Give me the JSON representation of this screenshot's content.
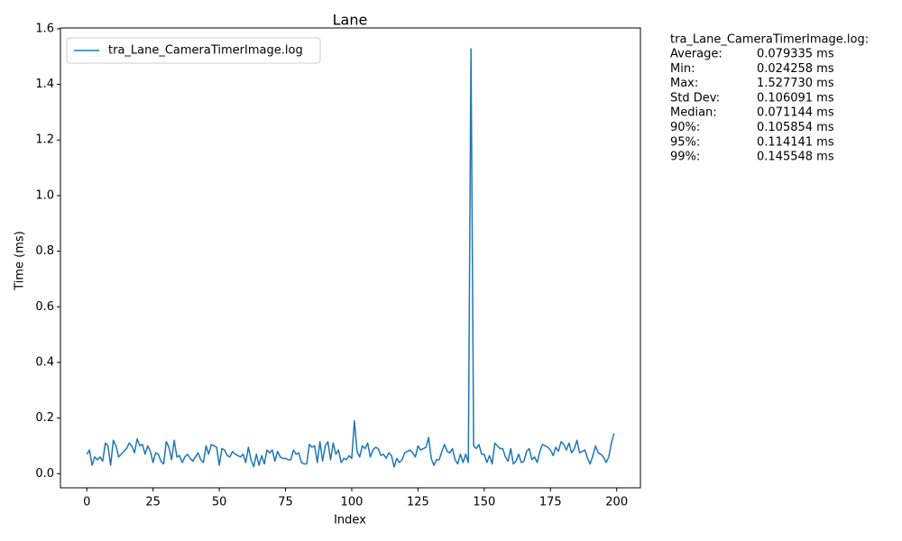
{
  "chart_data": {
    "type": "line",
    "title": "Lane",
    "x_label": "Index",
    "y_label": "Time (ms)",
    "x": [
      0,
      1,
      2,
      3,
      4,
      5,
      6,
      7,
      8,
      9,
      10,
      11,
      12,
      13,
      14,
      15,
      16,
      17,
      18,
      19,
      20,
      21,
      22,
      23,
      24,
      25,
      26,
      27,
      28,
      29,
      30,
      31,
      32,
      33,
      34,
      35,
      36,
      37,
      38,
      39,
      40,
      41,
      42,
      43,
      44,
      45,
      46,
      47,
      48,
      49,
      50,
      51,
      52,
      53,
      54,
      55,
      56,
      57,
      58,
      59,
      60,
      61,
      62,
      63,
      64,
      65,
      66,
      67,
      68,
      69,
      70,
      71,
      72,
      73,
      74,
      75,
      76,
      77,
      78,
      79,
      80,
      81,
      82,
      83,
      84,
      85,
      86,
      87,
      88,
      89,
      90,
      91,
      92,
      93,
      94,
      95,
      96,
      97,
      98,
      99,
      100,
      101,
      102,
      103,
      104,
      105,
      106,
      107,
      108,
      109,
      110,
      111,
      112,
      113,
      114,
      115,
      116,
      117,
      118,
      119,
      120,
      121,
      122,
      123,
      124,
      125,
      126,
      127,
      128,
      129,
      130,
      131,
      132,
      133,
      134,
      135,
      136,
      137,
      138,
      139,
      140,
      141,
      142,
      143,
      144,
      145,
      146,
      147,
      148,
      149,
      150,
      151,
      152,
      153,
      154,
      155,
      156,
      157,
      158,
      159,
      160,
      161,
      162,
      163,
      164,
      165,
      166,
      167,
      168,
      169,
      170,
      171,
      172,
      173,
      174,
      175,
      176,
      177,
      178,
      179,
      180,
      181,
      182,
      183,
      184,
      185,
      186,
      187,
      188,
      189,
      190,
      191,
      192,
      193,
      194,
      195,
      196,
      197,
      198,
      199
    ],
    "series": [
      {
        "name": "tra_Lane_CameraTimerImage.log",
        "color": "#1f77b4",
        "values": [
          0.07,
          0.085,
          0.03,
          0.06,
          0.05,
          0.06,
          0.045,
          0.11,
          0.1,
          0.03,
          0.12,
          0.1,
          0.06,
          0.07,
          0.08,
          0.09,
          0.11,
          0.1,
          0.075,
          0.125,
          0.1,
          0.105,
          0.07,
          0.1,
          0.08,
          0.04,
          0.075,
          0.07,
          0.045,
          0.035,
          0.115,
          0.095,
          0.05,
          0.12,
          0.06,
          0.065,
          0.04,
          0.06,
          0.07,
          0.055,
          0.045,
          0.06,
          0.075,
          0.05,
          0.04,
          0.1,
          0.07,
          0.105,
          0.1,
          0.095,
          0.03,
          0.09,
          0.085,
          0.065,
          0.06,
          0.08,
          0.07,
          0.065,
          0.06,
          0.07,
          0.04,
          0.095,
          0.05,
          0.025,
          0.07,
          0.03,
          0.065,
          0.035,
          0.085,
          0.075,
          0.085,
          0.045,
          0.08,
          0.06,
          0.055,
          0.055,
          0.05,
          0.05,
          0.085,
          0.07,
          0.075,
          0.04,
          0.035,
          0.035,
          0.105,
          0.095,
          0.1,
          0.04,
          0.115,
          0.045,
          0.1,
          0.115,
          0.05,
          0.11,
          0.07,
          0.085,
          0.04,
          0.055,
          0.05,
          0.065,
          0.055,
          0.19,
          0.08,
          0.06,
          0.1,
          0.09,
          0.11,
          0.06,
          0.085,
          0.095,
          0.09,
          0.065,
          0.07,
          0.055,
          0.075,
          0.065,
          0.024258,
          0.055,
          0.04,
          0.05,
          0.075,
          0.08,
          0.085,
          0.075,
          0.06,
          0.1,
          0.085,
          0.09,
          0.095,
          0.13,
          0.055,
          0.03,
          0.05,
          0.05,
          0.08,
          0.105,
          0.08,
          0.075,
          0.09,
          0.05,
          0.035,
          0.07,
          0.04,
          0.07,
          0.04,
          1.52773,
          0.1,
          0.09,
          0.105,
          0.07,
          0.07,
          0.04,
          0.065,
          0.035,
          0.11,
          0.1,
          0.09,
          0.09,
          0.06,
          0.045,
          0.09,
          0.035,
          0.045,
          0.07,
          0.04,
          0.045,
          0.08,
          0.09,
          0.05,
          0.06,
          0.04,
          0.08,
          0.105,
          0.1,
          0.095,
          0.085,
          0.065,
          0.095,
          0.08,
          0.115,
          0.105,
          0.085,
          0.11,
          0.075,
          0.09,
          0.12,
          0.075,
          0.08,
          0.085,
          0.055,
          0.035,
          0.065,
          0.1,
          0.075,
          0.07,
          0.06,
          0.04,
          0.06,
          0.11,
          0.145
        ]
      }
    ],
    "xlim": [
      -9.95,
      208.95
    ],
    "xticks": [
      0,
      25,
      50,
      75,
      100,
      125,
      150,
      175,
      200
    ],
    "ylim": [
      -0.0509,
      1.6029
    ],
    "yticks": [
      {
        "value": 0,
        "label": "0.0"
      },
      0.2,
      0.4,
      0.6,
      0.8,
      {
        "value": 1,
        "label": "1.0"
      },
      1.2,
      1.4,
      1.6
    ],
    "grid": false,
    "legend": "upper left",
    "stats": {
      "heading": "tra_Lane_CameraTimerImage.log:",
      "rows": [
        [
          "Average:",
          "0.079335 ms"
        ],
        [
          "Min:",
          "0.024258 ms"
        ],
        [
          "Max:",
          "1.527730 ms"
        ],
        [
          "Std Dev:",
          "0.106091 ms"
        ],
        [
          "Median:",
          "0.071144 ms"
        ],
        [
          "90%:",
          "0.105854 ms"
        ],
        [
          "95%:",
          "0.114141 ms"
        ],
        [
          "99%:",
          "0.145548 ms"
        ]
      ]
    }
  }
}
